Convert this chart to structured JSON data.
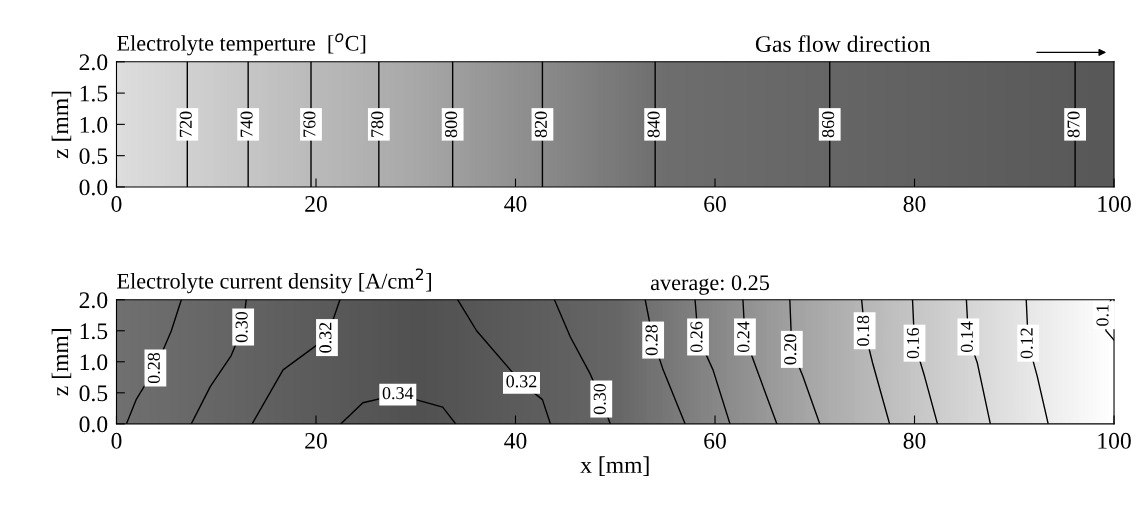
{
  "chart_data": [
    {
      "type": "line",
      "title": "Electrolyte temperture  [$^{o}$C]",
      "ylabel": "z [mm]",
      "xlim": [
        0,
        100
      ],
      "xticks": [
        0,
        20,
        40,
        60,
        80,
        100
      ],
      "ylim": [
        0,
        2
      ],
      "yticks": [
        {
          "value": 0,
          "label": "0.0"
        },
        {
          "value": 0.5,
          "label": "0.5"
        },
        {
          "value": 1,
          "label": "1.0"
        },
        {
          "value": 1.5,
          "label": "1.5"
        },
        {
          "value": 2,
          "label": "2.0"
        }
      ],
      "grid": false,
      "series": [
        {
          "color": "#000000",
          "x": [
            7.1,
            7.1
          ],
          "values": [
            0,
            2
          ]
        },
        {
          "color": "#000000",
          "x": [
            13.2,
            13.2
          ],
          "values": [
            0,
            2
          ]
        },
        {
          "color": "#000000",
          "x": [
            19.5,
            19.5
          ],
          "values": [
            0,
            2
          ]
        },
        {
          "color": "#000000",
          "x": [
            26.3,
            26.3
          ],
          "values": [
            0,
            2
          ]
        },
        {
          "color": "#000000",
          "x": [
            33.7,
            33.7
          ],
          "values": [
            0,
            2
          ]
        },
        {
          "color": "#000000",
          "x": [
            42.7,
            42.7
          ],
          "values": [
            0,
            2
          ]
        },
        {
          "color": "#000000",
          "x": [
            54.0,
            54.0
          ],
          "values": [
            0,
            2
          ]
        },
        {
          "color": "#000000",
          "x": [
            71.5,
            71.5
          ],
          "values": [
            0,
            2
          ]
        },
        {
          "color": "#000000",
          "x": [
            96.1,
            96.1
          ],
          "values": [
            0,
            2
          ]
        }
      ],
      "annotations": [
        {
          "text": "720",
          "x": 7.1,
          "y": 1.0
        },
        {
          "text": "740",
          "x": 13.2,
          "y": 1.0
        },
        {
          "text": "760",
          "x": 19.5,
          "y": 1.0
        },
        {
          "text": "780",
          "x": 26.3,
          "y": 1.0
        },
        {
          "text": "800",
          "x": 33.7,
          "y": 1.0
        },
        {
          "text": "820",
          "x": 42.7,
          "y": 1.0
        },
        {
          "text": "840",
          "x": 54.0,
          "y": 1.0
        },
        {
          "text": "860",
          "x": 71.5,
          "y": 1.0
        },
        {
          "text": "870",
          "x": 96.1,
          "y": 1.0
        },
        "Gas flow direction"
      ]
    },
    {
      "type": "line",
      "title": "Electrolyte current density [A/cm$^{2}$]",
      "xlabel": "x [mm]",
      "ylabel": "z [mm]",
      "xlim": [
        0,
        100
      ],
      "xticks": [
        0,
        20,
        40,
        60,
        80,
        100
      ],
      "ylim": [
        0,
        2
      ],
      "yticks": [
        {
          "value": 0,
          "label": "0.0"
        },
        {
          "value": 0.5,
          "label": "0.5"
        },
        {
          "value": 1,
          "label": "1.0"
        },
        {
          "value": 1.5,
          "label": "1.5"
        },
        {
          "value": 2,
          "label": "2.0"
        }
      ],
      "grid": false,
      "series": [
        {
          "color": "#000000",
          "x": [
            6.5,
            5.5,
            3.9,
            2.0,
            1.0
          ],
          "values": [
            2.0,
            1.5,
            0.9,
            0.4,
            0.0
          ]
        },
        {
          "color": "#000000",
          "x": [
            13.0,
            12.7,
            11.5,
            9.4,
            7.5
          ],
          "values": [
            2.0,
            1.56,
            1.1,
            0.6,
            0.0
          ]
        },
        {
          "color": "#000000",
          "x": [
            22.4,
            21.1,
            16.7,
            13.6
          ],
          "values": [
            2.0,
            1.39,
            0.87,
            0.0
          ]
        },
        {
          "color": "#000000",
          "x": [
            22.5,
            24.7,
            28.2,
            32.7,
            34.0
          ],
          "values": [
            0.0,
            0.34,
            0.47,
            0.27,
            0.0
          ]
        },
        {
          "color": "#000000",
          "x": [
            34.2,
            36.1,
            40.6,
            42.7,
            43.5
          ],
          "values": [
            2.0,
            1.5,
            0.66,
            0.39,
            0.0
          ]
        },
        {
          "color": "#000000",
          "x": [
            43.9,
            45.5,
            47.5,
            48.6,
            49.5
          ],
          "values": [
            2.0,
            1.4,
            0.8,
            0.4,
            0.0
          ]
        },
        {
          "color": "#000000",
          "x": [
            53.0,
            53.8,
            54.8,
            57.0
          ],
          "values": [
            2.0,
            1.35,
            0.87,
            0.0
          ]
        },
        {
          "color": "#000000",
          "x": [
            58.0,
            58.3,
            59.8,
            61.5
          ],
          "values": [
            2.0,
            1.4,
            0.87,
            0.0
          ]
        },
        {
          "color": "#000000",
          "x": [
            62.8,
            63.0,
            64.2,
            66.2
          ],
          "values": [
            2.0,
            1.4,
            0.87,
            0.0
          ]
        },
        {
          "color": "#000000",
          "x": [
            67.5,
            67.7,
            68.8,
            70.5
          ],
          "values": [
            2.0,
            1.2,
            0.77,
            0.0
          ]
        },
        {
          "color": "#000000",
          "x": [
            74.7,
            75.0,
            75.8,
            77.5
          ],
          "values": [
            2.0,
            1.5,
            0.98,
            0.0
          ]
        },
        {
          "color": "#000000",
          "x": [
            79.8,
            80.0,
            81.0,
            82.3
          ],
          "values": [
            2.0,
            1.3,
            0.77,
            0.0
          ]
        },
        {
          "color": "#000000",
          "x": [
            85.2,
            85.4,
            86.3,
            87.6
          ],
          "values": [
            2.0,
            1.4,
            0.98,
            0.0
          ]
        },
        {
          "color": "#000000",
          "x": [
            91.2,
            91.4,
            92.3,
            93.4
          ],
          "values": [
            2.0,
            1.3,
            0.77,
            0.0
          ]
        },
        {
          "color": "#000000",
          "x": [
            99.7,
            99.0,
            99.2,
            100.0
          ],
          "values": [
            2.0,
            1.75,
            1.5,
            1.35
          ]
        }
      ],
      "annotations": [
        {
          "text": "0.28",
          "x": 3.9,
          "y": 0.9
        },
        {
          "text": "0.30",
          "x": 12.7,
          "y": 1.56
        },
        {
          "text": "0.32",
          "x": 21.1,
          "y": 1.39
        },
        {
          "text": "0.34",
          "x": 28.2,
          "y": 0.47
        },
        {
          "text": "0.32",
          "x": 40.6,
          "y": 0.66
        },
        {
          "text": "0.30",
          "x": 48.6,
          "y": 0.4
        },
        {
          "text": "0.28",
          "x": 53.8,
          "y": 1.35
        },
        {
          "text": "0.26",
          "x": 58.3,
          "y": 1.4
        },
        {
          "text": "0.24",
          "x": 63.0,
          "y": 1.4
        },
        {
          "text": "0.20",
          "x": 67.7,
          "y": 1.2
        },
        {
          "text": "0.18",
          "x": 75.0,
          "y": 1.5
        },
        {
          "text": "0.16",
          "x": 80.0,
          "y": 1.3
        },
        {
          "text": "0.14",
          "x": 85.4,
          "y": 1.4
        },
        {
          "text": "0.12",
          "x": 91.4,
          "y": 1.3
        },
        {
          "text": "0.1",
          "x": 99.0,
          "y": 1.75
        },
        "average: 0.25"
      ]
    }
  ]
}
